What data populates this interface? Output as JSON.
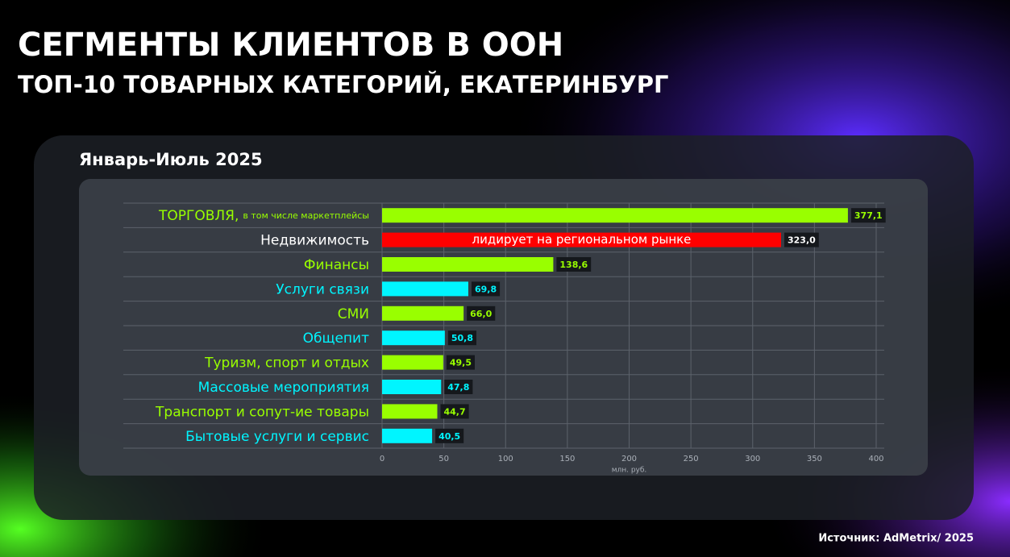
{
  "header": {
    "title": "СЕГМЕНТЫ КЛИЕНТОВ В ООН",
    "subtitle": "ТОП-10 ТОВАРНЫХ КАТЕГОРИЙ, ЕКАТЕРИНБУРГ"
  },
  "period": "Январь-Июль 2025",
  "source": "Источник: AdMetrix/ 2025",
  "chart_data": {
    "type": "hbar",
    "categories": [
      "ТОРГОВЛЯ,",
      "Недвижимость",
      "Финансы",
      "Услуги связи",
      "СМИ",
      "Общепит",
      "Туризм, спорт и отдых",
      "Массовые мероприятия",
      "Транспорт и сопут-ие товары",
      "Бытовые услуги и сервис"
    ],
    "category_note": "в том числе маркетплейсы",
    "values": [
      377.1,
      323.0,
      138.6,
      69.8,
      66.0,
      50.8,
      49.5,
      47.8,
      44.7,
      40.5
    ],
    "value_labels": [
      "377,1",
      "323,0",
      "138,6",
      "69,8",
      "66,0",
      "50,8",
      "49,5",
      "47,8",
      "44,7",
      "40,5"
    ],
    "colors": [
      "#99ff00",
      "#ff0000",
      "#99ff00",
      "#00f5ff",
      "#99ff00",
      "#00f5ff",
      "#99ff00",
      "#00f5ff",
      "#99ff00",
      "#00f5ff"
    ],
    "label_colors": [
      "#99ff00",
      "#ffffff",
      "#99ff00",
      "#00f5ff",
      "#99ff00",
      "#00f5ff",
      "#99ff00",
      "#00f5ff",
      "#99ff00",
      "#00f5ff"
    ],
    "annotation": "лидирует на региональном рынке",
    "xlim": [
      0,
      400
    ],
    "xticks": [
      0,
      50,
      100,
      150,
      200,
      250,
      300,
      350,
      400
    ],
    "xlabel": "млн. руб.",
    "grid": true
  }
}
